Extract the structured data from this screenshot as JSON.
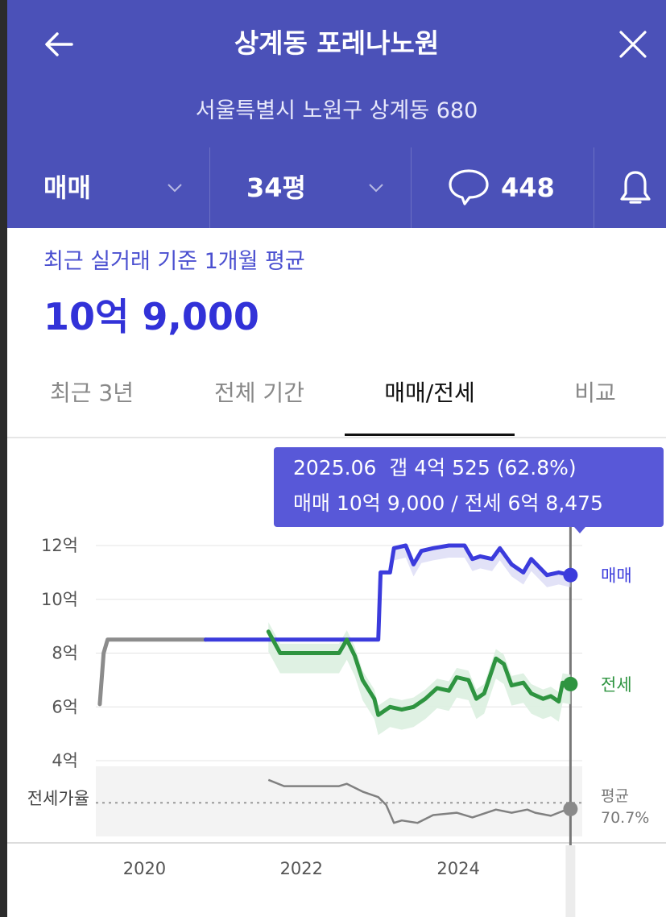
{
  "header": {
    "title": "상계동 포레나노원",
    "address": "서울특별시 노원구 상계동 680",
    "back_icon": "arrow-left-icon",
    "close_icon": "close-icon"
  },
  "filters": {
    "trade_type": "매매",
    "area": "34평",
    "comment_count": "448",
    "comment_icon": "speech-bubble-icon",
    "bell_icon": "bell-icon"
  },
  "price": {
    "label": "최근 실거래 기준 1개월 평균",
    "value": "10억 9,000"
  },
  "tabs": [
    {
      "label": "최근 3년"
    },
    {
      "label": "전체 기간"
    },
    {
      "label": "매매/전세",
      "active": true
    },
    {
      "label": "비교"
    }
  ],
  "tooltip": {
    "line1": "2025.06  갭 4억 525 (62.8%)",
    "line2": "매매 10억 9,000 / 전세 6억 8,475"
  },
  "colors": {
    "header_bg": "#4b51b8",
    "sale": "#3b3bdc",
    "jeonse": "#2e9440",
    "ratio": "#808080",
    "accent": "#3232d8"
  },
  "chart_data": {
    "type": "line",
    "x_ticks": [
      "2020",
      "2022",
      "2024"
    ],
    "y_ticks": [
      "12억",
      "10억",
      "8억",
      "6억",
      "4억"
    ],
    "ylim": [
      4,
      12
    ],
    "xlim": [
      2019.4,
      2025.6
    ],
    "series": [
      {
        "name": "매매",
        "unit": "억",
        "points": [
          [
            2019.45,
            6.1
          ],
          [
            2019.5,
            8.0
          ],
          [
            2019.55,
            8.5
          ],
          [
            2019.65,
            8.5
          ],
          [
            2020.0,
            8.5
          ],
          [
            2020.5,
            8.5
          ],
          [
            2020.8,
            8.5
          ],
          [
            2021.0,
            8.5
          ],
          [
            2021.5,
            8.5
          ],
          [
            2022.0,
            8.5
          ],
          [
            2022.5,
            8.5
          ],
          [
            2023.0,
            8.5
          ],
          [
            2023.03,
            11.0
          ],
          [
            2023.15,
            11.0
          ],
          [
            2023.2,
            11.9
          ],
          [
            2023.35,
            12.0
          ],
          [
            2023.45,
            11.3
          ],
          [
            2023.55,
            11.8
          ],
          [
            2023.7,
            11.9
          ],
          [
            2023.9,
            12.0
          ],
          [
            2024.1,
            12.0
          ],
          [
            2024.2,
            11.5
          ],
          [
            2024.3,
            11.6
          ],
          [
            2024.45,
            11.5
          ],
          [
            2024.55,
            11.9
          ],
          [
            2024.7,
            11.3
          ],
          [
            2024.85,
            11.0
          ],
          [
            2024.95,
            11.5
          ],
          [
            2025.15,
            10.9
          ],
          [
            2025.3,
            11.0
          ],
          [
            2025.45,
            10.9
          ]
        ]
      },
      {
        "name": "전세",
        "unit": "억",
        "points": [
          [
            2021.6,
            8.8
          ],
          [
            2021.75,
            8.0
          ],
          [
            2022.0,
            8.0
          ],
          [
            2022.3,
            8.0
          ],
          [
            2022.5,
            8.0
          ],
          [
            2022.6,
            8.5
          ],
          [
            2022.7,
            7.9
          ],
          [
            2022.8,
            7.0
          ],
          [
            2022.95,
            6.3
          ],
          [
            2023.0,
            5.7
          ],
          [
            2023.15,
            6.0
          ],
          [
            2023.3,
            5.9
          ],
          [
            2023.45,
            6.0
          ],
          [
            2023.6,
            6.3
          ],
          [
            2023.75,
            6.7
          ],
          [
            2023.9,
            6.6
          ],
          [
            2024.0,
            7.1
          ],
          [
            2024.15,
            7.0
          ],
          [
            2024.25,
            6.3
          ],
          [
            2024.35,
            6.5
          ],
          [
            2024.5,
            7.8
          ],
          [
            2024.6,
            7.6
          ],
          [
            2024.7,
            6.8
          ],
          [
            2024.85,
            6.9
          ],
          [
            2024.95,
            6.5
          ],
          [
            2025.1,
            6.3
          ],
          [
            2025.2,
            6.4
          ],
          [
            2025.3,
            6.2
          ],
          [
            2025.35,
            6.9
          ],
          [
            2025.45,
            6.85
          ]
        ]
      },
      {
        "name": "전세가율",
        "points": [
          [
            2021.6,
            100
          ],
          [
            2021.8,
            92
          ],
          [
            2022.2,
            92
          ],
          [
            2022.5,
            92
          ],
          [
            2022.6,
            95
          ],
          [
            2022.8,
            85
          ],
          [
            2023.0,
            78
          ],
          [
            2023.1,
            68
          ],
          [
            2023.2,
            45
          ],
          [
            2023.3,
            48
          ],
          [
            2023.5,
            45
          ],
          [
            2023.7,
            55
          ],
          [
            2024.0,
            58
          ],
          [
            2024.2,
            52
          ],
          [
            2024.5,
            62
          ],
          [
            2024.7,
            58
          ],
          [
            2024.9,
            62
          ],
          [
            2025.0,
            58
          ],
          [
            2025.2,
            54
          ],
          [
            2025.35,
            60
          ],
          [
            2025.45,
            62.8
          ]
        ]
      }
    ],
    "series_labels": {
      "sale": "매매",
      "jeonse": "전세"
    },
    "ratio_label": "전세가율",
    "ratio_avg_label": "평균",
    "ratio_avg_value": "70.7%",
    "ratio_avg": 70.7,
    "selected_x": 2025.45,
    "legend": "right"
  }
}
